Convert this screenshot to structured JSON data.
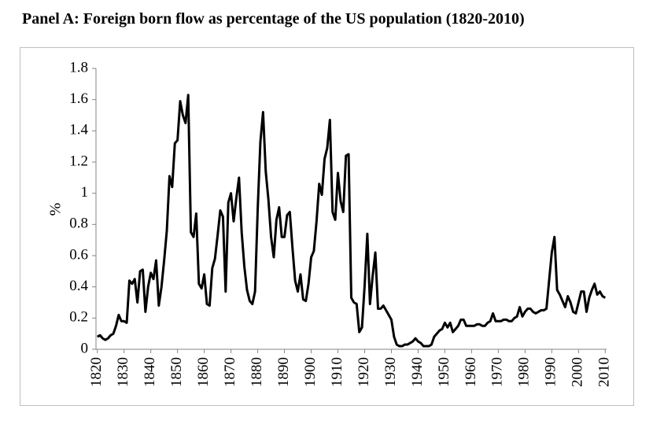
{
  "chart_data": {
    "type": "line",
    "title": "Panel A: Foreign born flow as percentage of the US population (1820-2010)",
    "y_label": "%",
    "color": "#000000",
    "grid": false,
    "xlim": [
      1819.5,
      2010.5
    ],
    "ylim": [
      0,
      1.8
    ],
    "xticks": [
      1820,
      1830,
      1840,
      1850,
      1860,
      1870,
      1880,
      1890,
      1900,
      1910,
      1920,
      1930,
      1940,
      1950,
      1960,
      1970,
      1980,
      1990,
      2000,
      2010
    ],
    "yticks": [
      0,
      0.2,
      0.4,
      0.6,
      0.8,
      1,
      1.2,
      1.4,
      1.6,
      1.8
    ],
    "x": [
      1820,
      1821,
      1822,
      1823,
      1824,
      1825,
      1826,
      1827,
      1828,
      1829,
      1830,
      1831,
      1832,
      1833,
      1834,
      1835,
      1836,
      1837,
      1838,
      1839,
      1840,
      1841,
      1842,
      1843,
      1844,
      1845,
      1846,
      1847,
      1848,
      1849,
      1850,
      1851,
      1852,
      1853,
      1854,
      1855,
      1856,
      1857,
      1858,
      1859,
      1860,
      1861,
      1862,
      1863,
      1864,
      1865,
      1866,
      1867,
      1868,
      1869,
      1870,
      1871,
      1872,
      1873,
      1874,
      1875,
      1876,
      1877,
      1878,
      1879,
      1880,
      1881,
      1882,
      1883,
      1884,
      1885,
      1886,
      1887,
      1888,
      1889,
      1890,
      1891,
      1892,
      1893,
      1894,
      1895,
      1896,
      1897,
      1898,
      1899,
      1900,
      1901,
      1902,
      1903,
      1904,
      1905,
      1906,
      1907,
      1908,
      1909,
      1910,
      1911,
      1912,
      1913,
      1914,
      1915,
      1916,
      1917,
      1918,
      1919,
      1920,
      1921,
      1922,
      1923,
      1924,
      1925,
      1926,
      1927,
      1928,
      1929,
      1930,
      1931,
      1932,
      1933,
      1934,
      1935,
      1936,
      1937,
      1938,
      1939,
      1940,
      1941,
      1942,
      1943,
      1944,
      1945,
      1946,
      1947,
      1948,
      1949,
      1950,
      1951,
      1952,
      1953,
      1954,
      1955,
      1956,
      1957,
      1958,
      1959,
      1960,
      1961,
      1962,
      1963,
      1964,
      1965,
      1966,
      1967,
      1968,
      1969,
      1970,
      1971,
      1972,
      1973,
      1974,
      1975,
      1976,
      1977,
      1978,
      1979,
      1980,
      1981,
      1982,
      1983,
      1984,
      1985,
      1986,
      1987,
      1988,
      1989,
      1990,
      1991,
      1992,
      1993,
      1994,
      1995,
      1996,
      1997,
      1998,
      1999,
      2000,
      2001,
      2002,
      2003,
      2004,
      2005,
      2006,
      2007,
      2008,
      2009,
      2010
    ],
    "values": [
      0.08,
      0.09,
      0.07,
      0.06,
      0.07,
      0.09,
      0.1,
      0.15,
      0.22,
      0.18,
      0.18,
      0.17,
      0.44,
      0.42,
      0.45,
      0.3,
      0.5,
      0.51,
      0.24,
      0.4,
      0.49,
      0.45,
      0.57,
      0.28,
      0.4,
      0.57,
      0.76,
      1.11,
      1.04,
      1.32,
      1.34,
      1.59,
      1.5,
      1.45,
      1.63,
      0.75,
      0.72,
      0.87,
      0.42,
      0.39,
      0.48,
      0.29,
      0.28,
      0.52,
      0.58,
      0.73,
      0.89,
      0.85,
      0.37,
      0.94,
      1.0,
      0.82,
      0.97,
      1.1,
      0.75,
      0.53,
      0.38,
      0.31,
      0.29,
      0.37,
      0.9,
      1.33,
      1.52,
      1.14,
      0.96,
      0.72,
      0.59,
      0.83,
      0.91,
      0.72,
      0.72,
      0.86,
      0.88,
      0.65,
      0.44,
      0.37,
      0.48,
      0.32,
      0.31,
      0.42,
      0.59,
      0.63,
      0.82,
      1.06,
      0.99,
      1.22,
      1.29,
      1.47,
      0.88,
      0.83,
      1.13,
      0.95,
      0.88,
      1.24,
      1.25,
      0.33,
      0.3,
      0.29,
      0.11,
      0.14,
      0.41,
      0.74,
      0.29,
      0.47,
      0.62,
      0.26,
      0.26,
      0.28,
      0.25,
      0.22,
      0.19,
      0.08,
      0.03,
      0.02,
      0.02,
      0.03,
      0.03,
      0.04,
      0.05,
      0.07,
      0.05,
      0.04,
      0.02,
      0.02,
      0.02,
      0.03,
      0.08,
      0.1,
      0.12,
      0.13,
      0.17,
      0.14,
      0.17,
      0.11,
      0.13,
      0.15,
      0.19,
      0.19,
      0.15,
      0.15,
      0.15,
      0.15,
      0.16,
      0.16,
      0.15,
      0.15,
      0.17,
      0.18,
      0.23,
      0.18,
      0.18,
      0.18,
      0.19,
      0.19,
      0.18,
      0.18,
      0.2,
      0.21,
      0.27,
      0.21,
      0.24,
      0.26,
      0.26,
      0.24,
      0.23,
      0.24,
      0.25,
      0.25,
      0.26,
      0.44,
      0.62,
      0.72,
      0.38,
      0.35,
      0.31,
      0.27,
      0.34,
      0.3,
      0.24,
      0.23,
      0.3,
      0.37,
      0.37,
      0.24,
      0.33,
      0.38,
      0.42,
      0.35,
      0.37,
      0.34,
      0.33
    ]
  }
}
